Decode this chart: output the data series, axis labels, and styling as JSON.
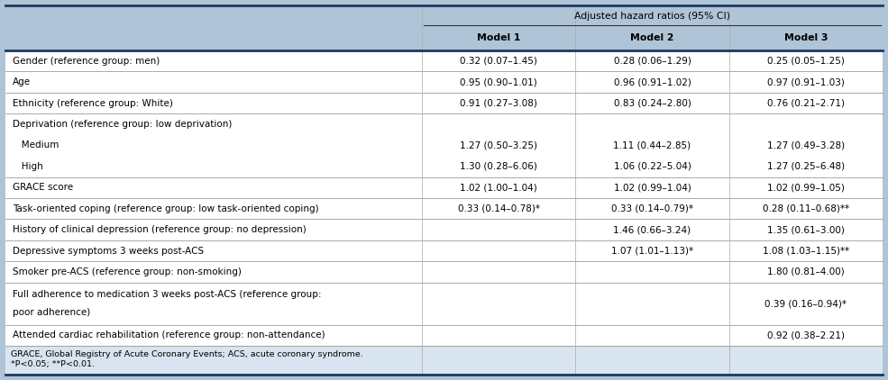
{
  "header_bg": "#b0c4d8",
  "footer_bg": "#d8e4ef",
  "white_bg": "#ffffff",
  "header_group": "Adjusted hazard ratios (95% CI)",
  "col_headers": [
    "Model 1",
    "Model 2",
    "Model 3"
  ],
  "rows": [
    {
      "label": "Gender (reference group: men)",
      "indent": 0,
      "values": [
        "0.32 (0.07–1.45)",
        "0.28 (0.06–1.29)",
        "0.25 (0.05–1.25)"
      ],
      "separator": true,
      "multiline": false
    },
    {
      "label": "Age",
      "indent": 0,
      "values": [
        "0.95 (0.90–1.01)",
        "0.96 (0.91–1.02)",
        "0.97 (0.91–1.03)"
      ],
      "separator": true,
      "multiline": false
    },
    {
      "label": "Ethnicity (reference group: White)",
      "indent": 0,
      "values": [
        "0.91 (0.27–3.08)",
        "0.83 (0.24–2.80)",
        "0.76 (0.21–2.71)"
      ],
      "separator": true,
      "multiline": false
    },
    {
      "label": "Deprivation (reference group: low deprivation)",
      "indent": 0,
      "values": [
        "",
        "",
        ""
      ],
      "separator": false,
      "multiline": false
    },
    {
      "label": "   Medium",
      "indent": 1,
      "values": [
        "1.27 (0.50–3.25)",
        "1.11 (0.44–2.85)",
        "1.27 (0.49–3.28)"
      ],
      "separator": false,
      "multiline": false
    },
    {
      "label": "   High",
      "indent": 1,
      "values": [
        "1.30 (0.28–6.06)",
        "1.06 (0.22–5.04)",
        "1.27 (0.25–6.48)"
      ],
      "separator": true,
      "multiline": false
    },
    {
      "label": "GRACE score",
      "indent": 0,
      "values": [
        "1.02 (1.00–1.04)",
        "1.02 (0.99–1.04)",
        "1.02 (0.99–1.05)"
      ],
      "separator": true,
      "multiline": false
    },
    {
      "label": "Task-oriented coping (reference group: low task-oriented coping)",
      "indent": 0,
      "values": [
        "0.33 (0.14–0.78)*",
        "0.33 (0.14–0.79)*",
        "0.28 (0.11–0.68)**"
      ],
      "separator": true,
      "multiline": false
    },
    {
      "label": "History of clinical depression (reference group: no depression)",
      "indent": 0,
      "values": [
        "",
        "1.46 (0.66–3.24)",
        "1.35 (0.61–3.00)"
      ],
      "separator": true,
      "multiline": false
    },
    {
      "label": "Depressive symptoms 3 weeks post-ACS",
      "indent": 0,
      "values": [
        "",
        "1.07 (1.01–1.13)*",
        "1.08 (1.03–1.15)**"
      ],
      "separator": true,
      "multiline": false
    },
    {
      "label": "Smoker pre-ACS (reference group: non-smoking)",
      "indent": 0,
      "values": [
        "",
        "",
        "1.80 (0.81–4.00)"
      ],
      "separator": true,
      "multiline": false
    },
    {
      "label": "Full adherence to medication 3 weeks post-ACS (reference group:\npoor adherence)",
      "indent": 0,
      "values": [
        "",
        "",
        "0.39 (0.16–0.94)*"
      ],
      "separator": true,
      "multiline": true
    },
    {
      "label": "Attended cardiac rehabilitation (reference group: non-attendance)",
      "indent": 0,
      "values": [
        "",
        "",
        "0.92 (0.38–2.21)"
      ],
      "separator": true,
      "multiline": false
    }
  ],
  "footer_text_line1": "GRACE, Global Registry of Acute Coronary Events; ACS, acute coronary syndrome.",
  "footer_text_line2": "*P<0.05; **P<0.01.",
  "font_size": 7.5,
  "header_font_size": 7.8
}
